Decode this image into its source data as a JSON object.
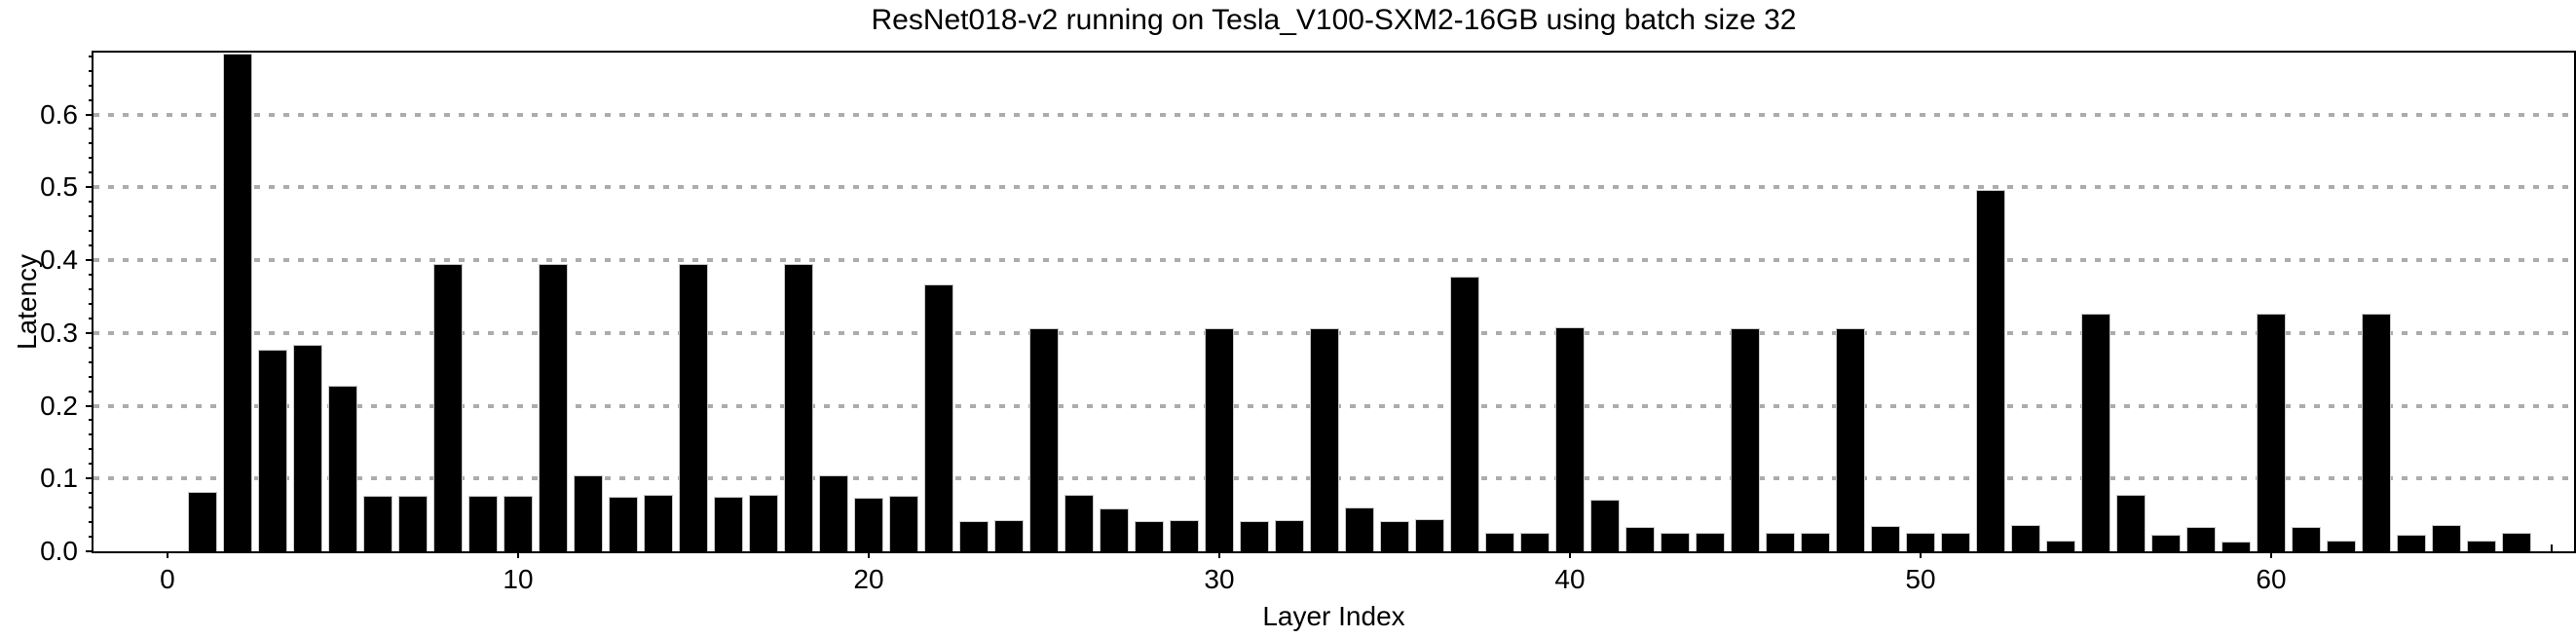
{
  "title": "ResNet018-v2 running on Tesla_V100-SXM2-16GB using batch size 32",
  "chart_data": {
    "type": "bar",
    "title": "ResNet018-v2 running on Tesla_V100-SXM2-16GB using batch size 32",
    "xlabel": "Layer Index",
    "ylabel": "Latency",
    "x": [
      1,
      2,
      3,
      4,
      5,
      6,
      7,
      8,
      9,
      10,
      11,
      12,
      13,
      14,
      15,
      16,
      17,
      18,
      19,
      20,
      21,
      22,
      23,
      24,
      25,
      26,
      27,
      28,
      29,
      30,
      31,
      32,
      33,
      34,
      35,
      36,
      37,
      38,
      39,
      40,
      41,
      42,
      43,
      44,
      45,
      46,
      47,
      48,
      49,
      50,
      51,
      52,
      53,
      54,
      55,
      56,
      57,
      58,
      59,
      60,
      61,
      62,
      63,
      64,
      65,
      66,
      67
    ],
    "values": [
      0.081,
      0.684,
      0.277,
      0.283,
      0.228,
      0.076,
      0.076,
      0.395,
      0.076,
      0.076,
      0.395,
      0.105,
      0.075,
      0.078,
      0.395,
      0.075,
      0.078,
      0.395,
      0.105,
      0.074,
      0.076,
      0.366,
      0.041,
      0.043,
      0.306,
      0.078,
      0.059,
      0.042,
      0.043,
      0.306,
      0.041,
      0.043,
      0.306,
      0.06,
      0.041,
      0.044,
      0.377,
      0.025,
      0.025,
      0.308,
      0.071,
      0.033,
      0.026,
      0.026,
      0.307,
      0.026,
      0.026,
      0.307,
      0.035,
      0.026,
      0.026,
      0.496,
      0.036,
      0.015,
      0.326,
      0.078,
      0.023,
      0.034,
      0.014,
      0.327,
      0.034,
      0.015,
      0.327,
      0.023,
      0.036,
      0.015,
      0.026
    ],
    "xlim": [
      -2.11,
      68.64
    ],
    "ylim": [
      0,
      0.685
    ],
    "xticks": [
      0,
      10,
      20,
      30,
      40,
      50,
      60
    ],
    "xtick_labels": [
      "0",
      "10",
      "20",
      "30",
      "40",
      "50",
      "60"
    ],
    "x_minor_tick": 68,
    "yticks": [
      0.0,
      0.1,
      0.2,
      0.3,
      0.4,
      0.5,
      0.6
    ],
    "ytick_labels": [
      "0.0",
      "0.1",
      "0.2",
      "0.3",
      "0.4",
      "0.5",
      "0.6"
    ],
    "y_minor_tick_step": 0.02,
    "gridlines_y": [
      0.1,
      0.2,
      0.3,
      0.4,
      0.5,
      0.6
    ],
    "grid_style": "dotted",
    "grid_on": true,
    "legend_position": "none",
    "bar_color": "#000000",
    "bar_edge_color": "#c9c9c9",
    "grid_color": "#acacac",
    "frame_color": "#000000",
    "background_color": "#ffffff"
  }
}
